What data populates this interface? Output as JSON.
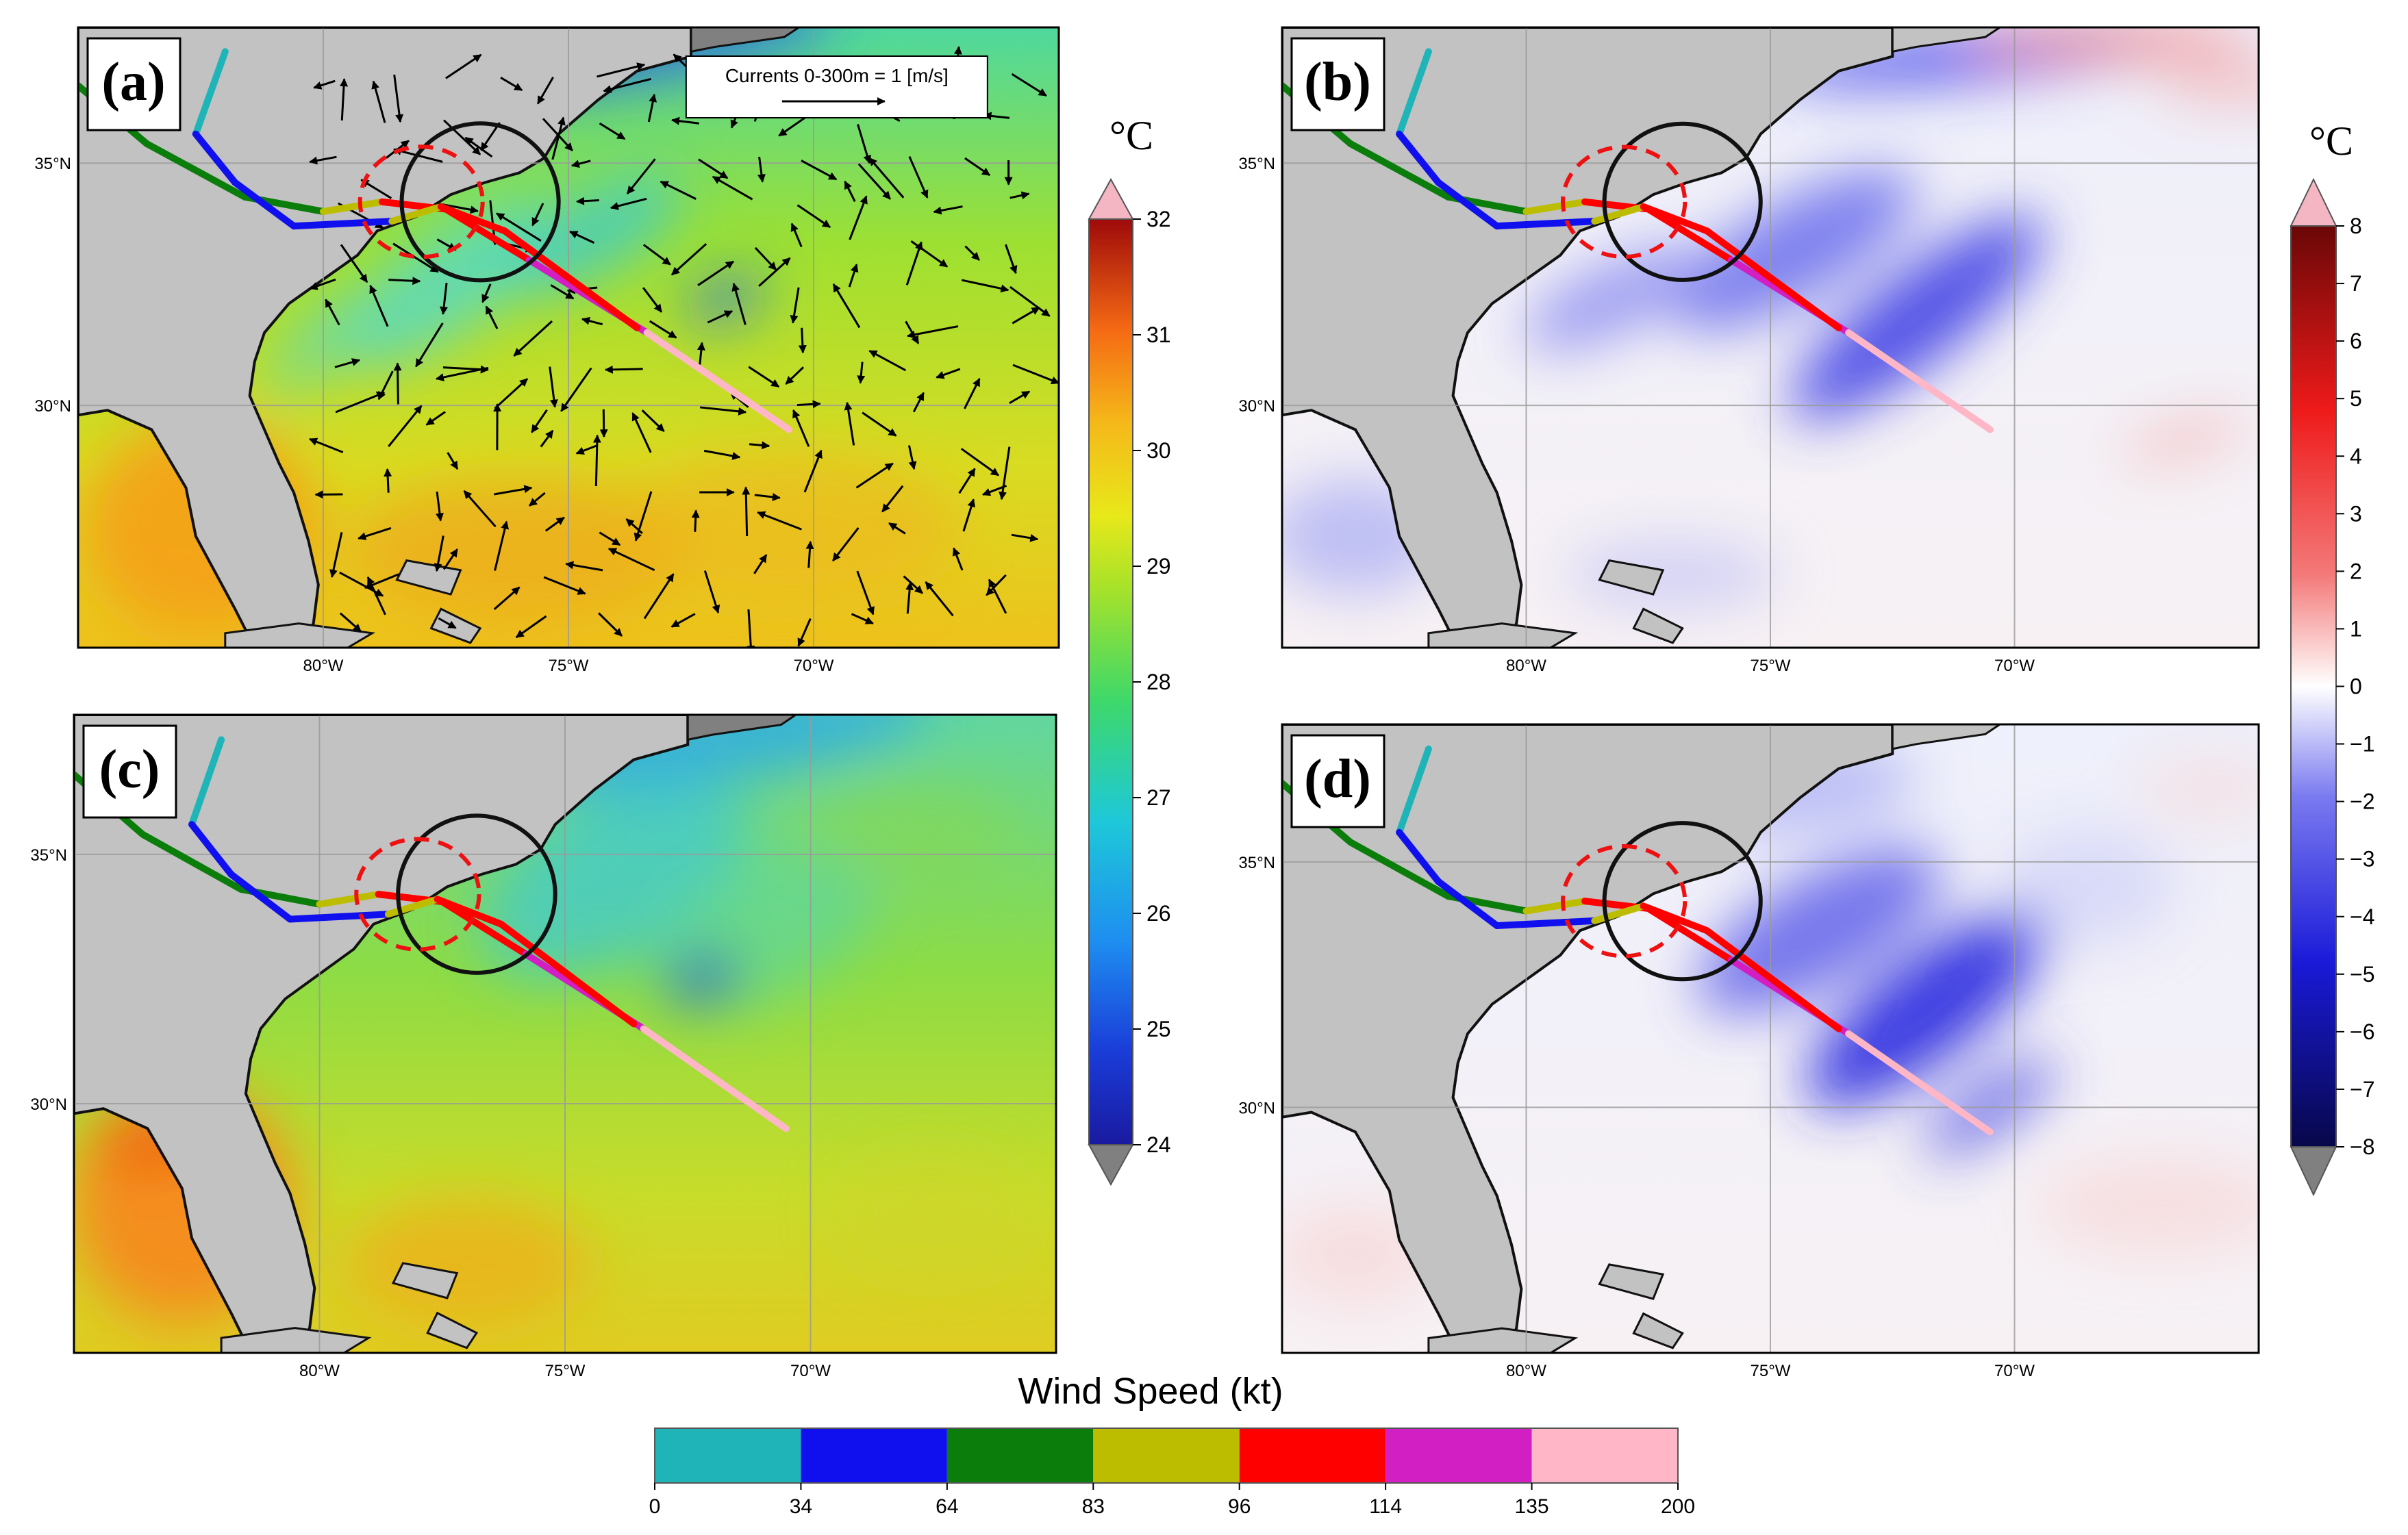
{
  "panels": [
    {
      "id": "a",
      "label": "(a)",
      "field": "sst",
      "quiver": true
    },
    {
      "id": "b",
      "label": "(b)",
      "field": "diff_b",
      "quiver": false
    },
    {
      "id": "c",
      "label": "(c)",
      "field": "sst_c",
      "quiver": false
    },
    {
      "id": "d",
      "label": "(d)",
      "field": "diff_d",
      "quiver": false
    }
  ],
  "map_axes": {
    "lon_range": [
      -85,
      -65
    ],
    "lat_range": [
      25,
      37.8
    ],
    "lon_ticks": [
      {
        "value": -80,
        "label": "80°W"
      },
      {
        "value": -75,
        "label": "75°W"
      },
      {
        "value": -70,
        "label": "70°W"
      }
    ],
    "lat_ticks": [
      {
        "value": 35,
        "label": "35°N"
      },
      {
        "value": 30,
        "label": "30°N"
      }
    ]
  },
  "quiver_key": {
    "text": "Currents 0-300m =  1 [m/s]"
  },
  "colorbar_sst": {
    "unit": "°C",
    "min": 24,
    "max": 32,
    "ticks": [
      "24",
      "25",
      "26",
      "27",
      "28",
      "29",
      "30",
      "31",
      "32"
    ],
    "extend": "both",
    "under_color": "#808080",
    "over_color": "#f4b6c2"
  },
  "colorbar_diff": {
    "unit": "°C",
    "min": -8,
    "max": 8,
    "ticks": [
      "−8",
      "−7",
      "−6",
      "−5",
      "−4",
      "−3",
      "−2",
      "−1",
      "0",
      "1",
      "2",
      "3",
      "4",
      "5",
      "6",
      "7",
      "8"
    ],
    "extend": "both",
    "under_color": "#808080",
    "over_color": "#f4b6c2"
  },
  "wind_colorbar": {
    "title": "Wind Speed (kt)",
    "bounds": [
      "0",
      "34",
      "64",
      "83",
      "96",
      "114",
      "135",
      "200"
    ],
    "colors": [
      "#1fb5b8",
      "#1010ee",
      "#0a7d0a",
      "#bdbd00",
      "#ff0000",
      "#d11fc4",
      "#ffb6c6"
    ]
  },
  "tracks": {
    "note_colors_by_wind": true,
    "track_best": [
      {
        "lon": -85,
        "lat": 36.6,
        "kt": 34
      },
      {
        "lon": -83.6,
        "lat": 35.4,
        "kt": 64
      },
      {
        "lon": -81.6,
        "lat": 34.3,
        "kt": 64
      },
      {
        "lon": -80.0,
        "lat": 34.0,
        "kt": 64
      },
      {
        "lon": -78.8,
        "lat": 34.2,
        "kt": 83
      },
      {
        "lon": -77.5,
        "lat": 34.05,
        "kt": 96
      },
      {
        "lon": -75.8,
        "lat": 33.0,
        "kt": 96
      },
      {
        "lon": -73.4,
        "lat": 31.5,
        "kt": 114
      },
      {
        "lon": -70.5,
        "lat": 29.5,
        "kt": 135
      }
    ],
    "track_model": [
      {
        "lon": -82.0,
        "lat": 37.3,
        "kt": 0
      },
      {
        "lon": -82.6,
        "lat": 35.6,
        "kt": 0
      },
      {
        "lon": -81.8,
        "lat": 34.6,
        "kt": 34
      },
      {
        "lon": -80.6,
        "lat": 33.7,
        "kt": 34
      },
      {
        "lon": -78.6,
        "lat": 33.8,
        "kt": 34
      },
      {
        "lon": -77.6,
        "lat": 34.1,
        "kt": 83
      },
      {
        "lon": -76.3,
        "lat": 33.6,
        "kt": 96
      },
      {
        "lon": -73.6,
        "lat": 31.6,
        "kt": 96
      }
    ]
  },
  "circles": {
    "black_center": {
      "lon": -76.8,
      "lat": 34.2,
      "r_deg": 1.6
    },
    "red_dashed_center": {
      "lon": -78.0,
      "lat": 34.2,
      "r_deg": 1.25
    }
  }
}
